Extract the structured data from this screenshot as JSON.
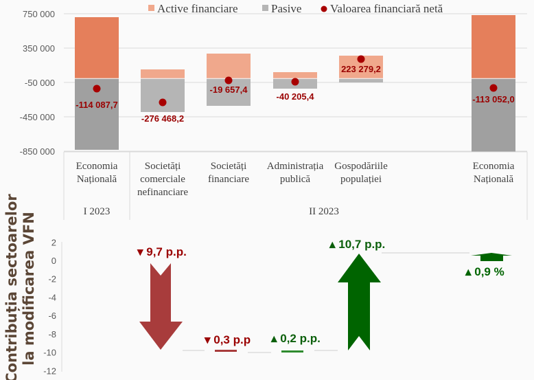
{
  "chart_data": [
    {
      "type": "bar",
      "stacked": true,
      "categories": [
        "Economia Națională",
        "Societăți comerciale nefinanciare",
        "Societăți financiare",
        "Administrația publică",
        "Gospodăriile populației",
        "Economia Națională"
      ],
      "category_lines": [
        [
          "Economia",
          "Națională"
        ],
        [
          "Societăți",
          "comerciale",
          "nefinanciare"
        ],
        [
          "Societăți",
          "financiare"
        ],
        [
          "Administrația",
          "publică"
        ],
        [
          "Gospodăriile",
          "populației"
        ],
        [
          "Economia",
          "Națională"
        ]
      ],
      "groups": [
        {
          "label": "I 2023",
          "span": 1
        },
        {
          "label": "II 2023",
          "span": 5
        }
      ],
      "series": [
        {
          "name": "Active financiare",
          "color": "#f0a88c",
          "highlight_color": "#e57f5b",
          "values": [
            710000,
            102000,
            286000,
            70000,
            262000,
            734000
          ]
        },
        {
          "name": "Pasive",
          "color": "#b5b5b5",
          "highlight_color": "#a0a0a0",
          "values": [
            -834000,
            -394000,
            -322000,
            -122000,
            -50000,
            -858000
          ]
        },
        {
          "name": "Valoarea financiară netă",
          "type": "scatter",
          "color": "#a80000",
          "values": [
            -114087.7,
            -276468.2,
            -19657.4,
            -40205.4,
            223279.2,
            -113052.0
          ],
          "labels": [
            "-114 087,7",
            "-276 468,2",
            "-19 657,4",
            "-40 205,4",
            "223 279,2",
            "-113 052,0"
          ]
        }
      ],
      "yticks": [
        "750 000",
        "350 000",
        "-50 000",
        "-450 000",
        "-850 000"
      ],
      "ytick_values": [
        750000,
        350000,
        -50000,
        -450000,
        -850000
      ],
      "ylim": [
        -850000,
        750000
      ],
      "grid": true,
      "legend": "top"
    },
    {
      "type": "waterfall",
      "ylabel": [
        "Contribuția sectoarelor",
        "la modificarea VFN"
      ],
      "yticks": [
        "2",
        "0",
        "-2",
        "-4",
        "-6",
        "-8",
        "-10",
        "-12"
      ],
      "ytick_values": [
        2,
        0,
        -2,
        -4,
        -6,
        -8,
        -10,
        -12
      ],
      "ylim": [
        -12,
        2
      ],
      "steps": [
        {
          "value": -9.7,
          "label": "9,7 p.p.",
          "direction": "down",
          "color": "#a83c3c",
          "label_color": "#9a0000"
        },
        {
          "value": -0.3,
          "label": "0,3 p.p",
          "direction": "down",
          "color": "#a83c3c",
          "label_color": "#9a0000"
        },
        {
          "value": 0.2,
          "label": "0,2 p.p.",
          "direction": "up",
          "color": "#2e8b2e",
          "label_color": "#0b5f0b"
        },
        {
          "value": 10.7,
          "label": "10,7 p.p.",
          "direction": "up",
          "color": "#006400",
          "label_color": "#0b5f0b"
        }
      ],
      "total": {
        "value": 0.9,
        "label": "0,9 %",
        "direction": "up",
        "color": "#006400"
      }
    }
  ]
}
